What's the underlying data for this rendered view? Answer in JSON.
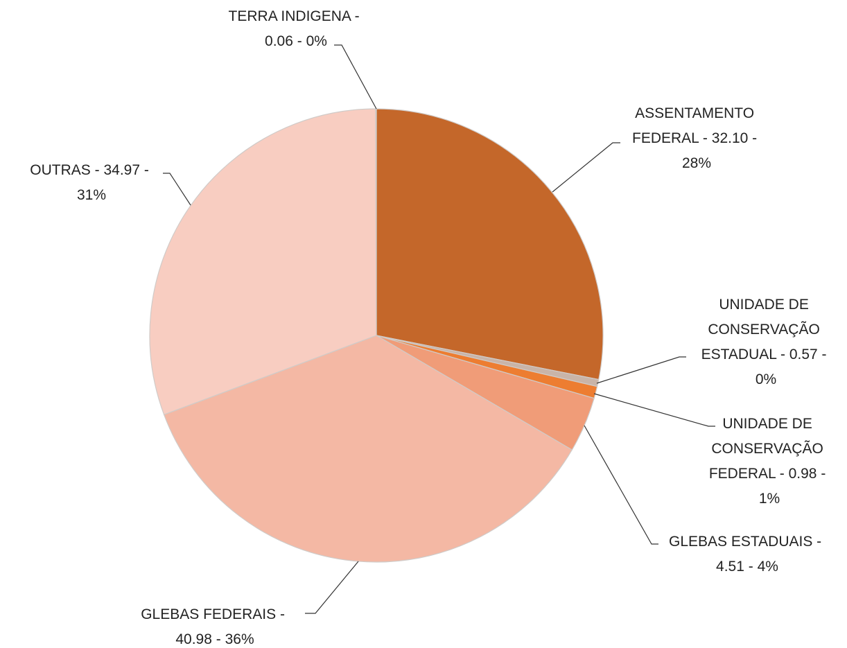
{
  "chart_data": {
    "type": "pie",
    "categories": [
      "ASSENTAMENTO FEDERAL",
      "UNIDADE DE CONSERVAÇÃO ESTADUAL",
      "UNIDADE DE CONSERVAÇÃO FEDERAL",
      "GLEBAS ESTADUAIS",
      "GLEBAS FEDERAIS",
      "OUTRAS",
      "TERRA INDIGENA"
    ],
    "values": [
      32.1,
      0.57,
      0.98,
      4.51,
      40.98,
      34.97,
      0.06
    ],
    "value_labels": [
      "32.10",
      "0.57",
      "0.98",
      "4.51",
      "40.98",
      "34.97",
      "0.06"
    ],
    "percent_labels": [
      "28%",
      "0%",
      "1%",
      "4%",
      "36%",
      "31%",
      "0%"
    ],
    "label_separator": " - ",
    "colors": [
      "#c4672a",
      "#c9b4a8",
      "#ed7d31",
      "#f09c78",
      "#f4b8a4",
      "#f8cdc1",
      "#f6d9cf"
    ]
  }
}
